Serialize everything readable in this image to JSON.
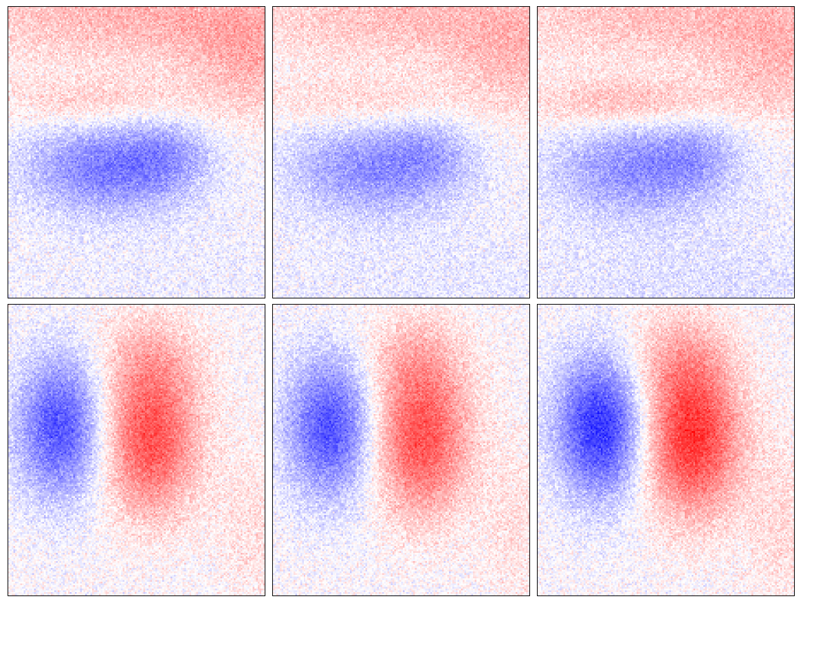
{
  "figure": {
    "rows": 2,
    "cols": 3,
    "colormap": {
      "negative": "#0000ff",
      "zero": "#ffffff",
      "positive": "#ff0000"
    },
    "panels": [
      {
        "row": 0,
        "col": 0,
        "pattern": "red-top-band-blue-middle-blob",
        "intensity": 0.65,
        "noise": 0.25
      },
      {
        "row": 0,
        "col": 1,
        "pattern": "red-top-band-blue-middle-blob",
        "intensity": 0.55,
        "noise": 0.25
      },
      {
        "row": 0,
        "col": 2,
        "pattern": "red-top-band-blue-middle-blob",
        "intensity": 0.55,
        "noise": 0.25
      },
      {
        "row": 1,
        "col": 0,
        "pattern": "blue-left-red-right-dipole",
        "intensity": 0.8,
        "noise": 0.25
      },
      {
        "row": 1,
        "col": 1,
        "pattern": "blue-left-red-right-dipole",
        "intensity": 0.8,
        "noise": 0.25
      },
      {
        "row": 1,
        "col": 2,
        "pattern": "blue-left-red-right-dipole",
        "intensity": 0.95,
        "noise": 0.25
      }
    ]
  }
}
